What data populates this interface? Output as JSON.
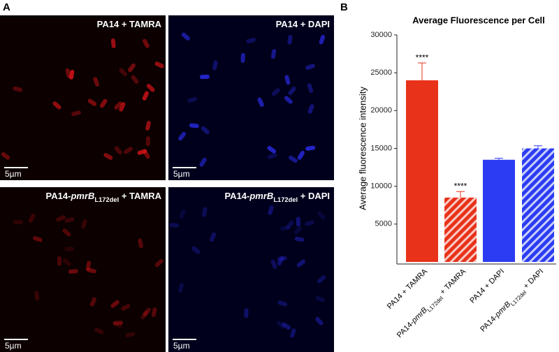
{
  "panel_labels": [
    "A",
    "B"
  ],
  "images": [
    {
      "label": [
        "PA14 + TAMRA"
      ],
      "scale": "5µm",
      "channel": "red"
    },
    {
      "label": [
        "PA14 + DAPI"
      ],
      "scale": "5µm",
      "channel": "blue"
    },
    {
      "label": [
        "PA14-",
        "pmrB",
        "L172del",
        " + TAMRA"
      ],
      "scale": "5µm",
      "channel": "red"
    },
    {
      "label": [
        "PA14-",
        "pmrB",
        "L172del",
        " + DAPI"
      ],
      "scale": "5µm",
      "channel": "blue"
    }
  ],
  "chart_data": {
    "type": "bar",
    "title": "Average Fluorescence per Cell",
    "y_label": "Average fluorescence intensity",
    "categories": [
      [
        "PA14 + TAMRA"
      ],
      [
        "PA14-",
        "pmrB",
        "L172del",
        " + TAMRA"
      ],
      [
        "PA14 + DAPI"
      ],
      [
        "PA14-",
        "pmrB",
        "L172del",
        " + DAPI"
      ]
    ],
    "values": [
      24000,
      8500,
      13500,
      15000
    ],
    "errors": [
      2300,
      800,
      200,
      350
    ],
    "annotations": [
      "****",
      "****",
      null,
      null
    ],
    "colors": [
      "#e8321a",
      "#e8321a",
      "#2b3cf2",
      "#2b3cf2"
    ],
    "hatch": [
      false,
      true,
      false,
      true
    ],
    "ylim": [
      0,
      30000
    ],
    "yticks": [
      5000,
      10000,
      15000,
      20000,
      25000,
      30000
    ]
  }
}
